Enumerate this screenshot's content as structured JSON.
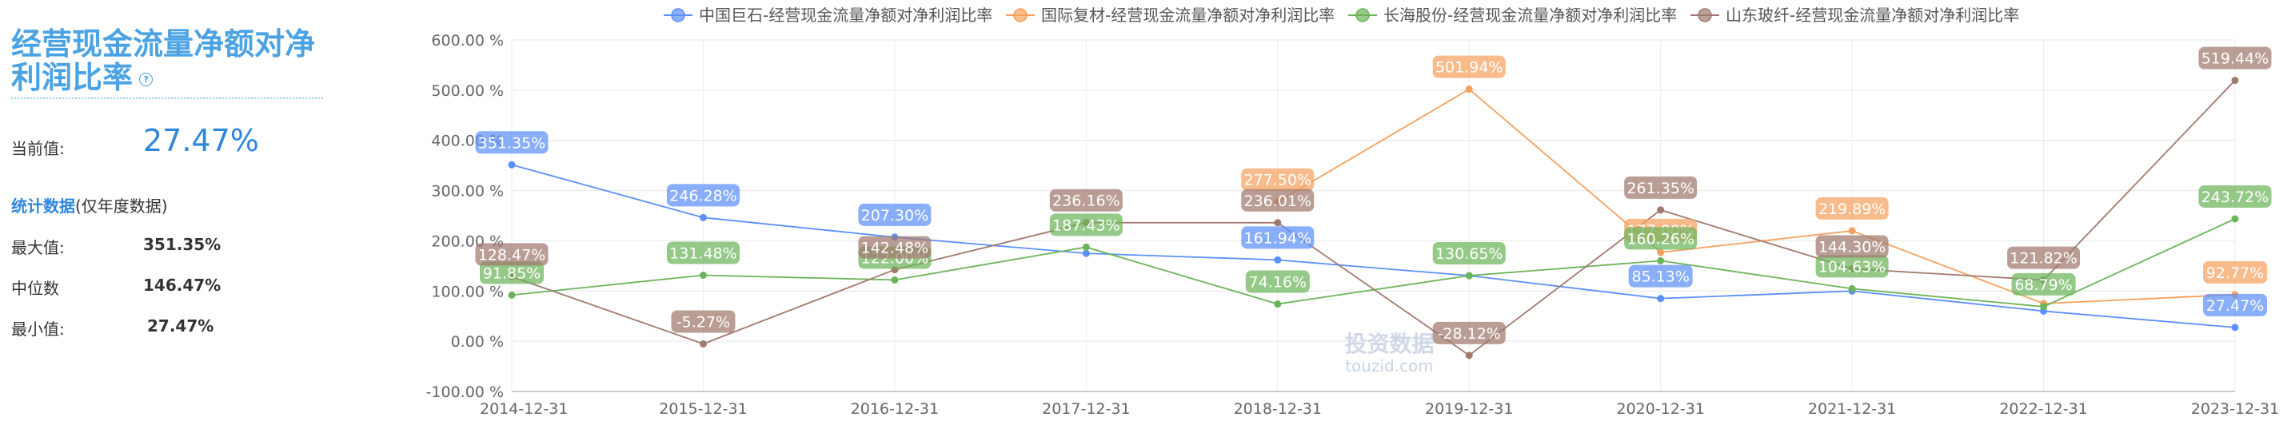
{
  "sidebar": {
    "title": "经营现金流量净额对净利润比率",
    "help_icon": "?",
    "current_label": "当前值:",
    "current_value": "27.47%",
    "stats_link": "统计数据",
    "stats_note": "(仅年度数据)",
    "stats": [
      {
        "label": "最大值:",
        "value": "351.35%"
      },
      {
        "label": "中位数",
        "value": "146.47%"
      },
      {
        "label": "最小值:",
        "value": "27.47%"
      }
    ]
  },
  "watermark": {
    "cn": "投资数据",
    "en": "touzid.com"
  },
  "chart_data": {
    "type": "line",
    "categories": [
      "2014-12-31",
      "2015-12-31",
      "2016-12-31",
      "2017-12-31",
      "2018-12-31",
      "2019-12-31",
      "2020-12-31",
      "2021-12-31",
      "2022-12-31",
      "2023-12-31"
    ],
    "ylim": [
      -100,
      600
    ],
    "yticks": [
      -100,
      0,
      100,
      200,
      300,
      400,
      500,
      600
    ],
    "ytick_labels": [
      "-100.00 %",
      "0.00 %",
      "100.00 %",
      "200.00 %",
      "300.00 %",
      "400.00 %",
      "500.00 %",
      "600.00 %"
    ],
    "grid": true,
    "legend_position": "top",
    "series": [
      {
        "name": "中国巨石-经营现金流量净额对净利润比率",
        "color": "#5b8ff9",
        "values": [
          351.35,
          246.28,
          207.3,
          175.0,
          161.94,
          130.65,
          85.13,
          100.0,
          60.0,
          27.47
        ],
        "labels": [
          "351.35%",
          "246.28%",
          "207.30%",
          "",
          "161.94%",
          "",
          "85.13%",
          "",
          "",
          "27.47%"
        ]
      },
      {
        "name": "国际复材-经营现金流量净额对净利润比率",
        "color": "#f5a15e",
        "values": [
          null,
          null,
          null,
          null,
          277.5,
          501.94,
          177.0,
          219.89,
          75.0,
          92.77
        ],
        "labels": [
          "",
          "",
          "",
          "",
          "277.50%",
          "501.94%",
          "177.00%",
          "219.89%",
          "",
          "92.77%"
        ]
      },
      {
        "name": "长海股份-经营现金流量净额对净利润比率",
        "color": "#6cb45a",
        "values": [
          91.85,
          131.48,
          122.0,
          187.43,
          74.16,
          130.65,
          160.26,
          104.63,
          68.79,
          243.72
        ],
        "labels": [
          "91.85%",
          "131.48%",
          "122.00%",
          "187.43%",
          "74.16%",
          "130.65%",
          "160.26%",
          "104.63%",
          "68.79%",
          "243.72%"
        ]
      },
      {
        "name": "山东玻纤-经营现金流量净额对净利润比率",
        "color": "#a0796e",
        "values": [
          128.47,
          -5.27,
          142.48,
          236.16,
          236.01,
          -28.12,
          261.35,
          144.3,
          121.82,
          519.44
        ],
        "labels": [
          "128.47%",
          "-5.27%",
          "142.48%",
          "236.16%",
          "236.01%",
          "-28.12%",
          "261.35%",
          "144.30%",
          "121.82%",
          "519.44%"
        ]
      }
    ]
  }
}
